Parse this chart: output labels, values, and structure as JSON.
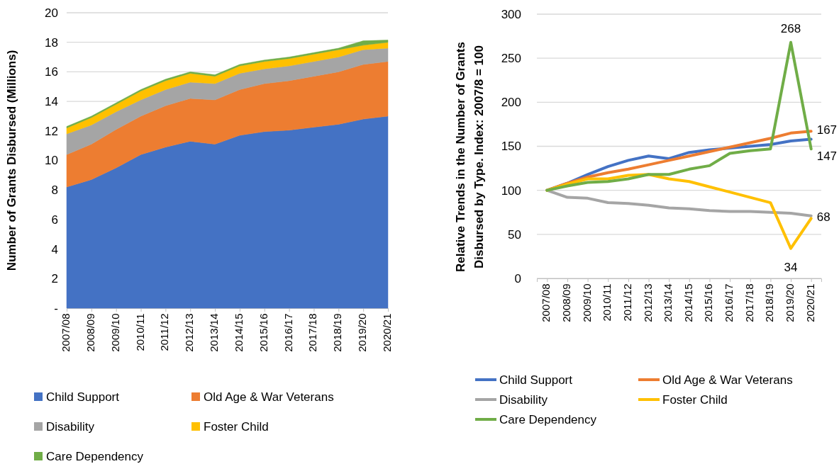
{
  "chart_data": [
    {
      "type": "area",
      "stacked": true,
      "ylabel": "Number of Grants Disbursed (Millions)",
      "categories": [
        "2007/08",
        "2008/09",
        "2009/10",
        "2010/11",
        "2011/12",
        "2012/13",
        "2013/14",
        "2014/15",
        "2015/16",
        "2016/17",
        "2017/18",
        "2018/19",
        "2019/20",
        "2020/21"
      ],
      "series": [
        {
          "name": "Child Support",
          "color": "#4472c4",
          "values": [
            8.2,
            8.7,
            9.5,
            10.4,
            10.9,
            11.3,
            11.1,
            11.7,
            11.95,
            12.05,
            12.25,
            12.45,
            12.8,
            13.0
          ]
        },
        {
          "name": "Old Age & War Veterans",
          "color": "#ed7d31",
          "values": [
            2.2,
            2.4,
            2.6,
            2.6,
            2.8,
            2.9,
            3.0,
            3.1,
            3.25,
            3.35,
            3.45,
            3.55,
            3.7,
            3.7
          ]
        },
        {
          "name": "Disability",
          "color": "#a5a5a5",
          "values": [
            1.4,
            1.3,
            1.2,
            1.1,
            1.1,
            1.1,
            1.1,
            1.1,
            1.0,
            1.0,
            1.0,
            1.0,
            1.0,
            0.9
          ]
        },
        {
          "name": "Foster Child",
          "color": "#ffc000",
          "values": [
            0.4,
            0.5,
            0.5,
            0.6,
            0.6,
            0.6,
            0.5,
            0.5,
            0.5,
            0.5,
            0.5,
            0.5,
            0.3,
            0.4
          ]
        },
        {
          "name": "Care Dependency",
          "color": "#70ad47",
          "values": [
            0.1,
            0.1,
            0.1,
            0.1,
            0.1,
            0.1,
            0.1,
            0.1,
            0.1,
            0.1,
            0.1,
            0.1,
            0.3,
            0.15
          ]
        }
      ],
      "ylim": [
        0,
        20
      ],
      "yticks": [
        {
          "value": 0,
          "label": "-"
        },
        2,
        4,
        6,
        8,
        10,
        12,
        14,
        16,
        18,
        20
      ],
      "grid": "y",
      "legend": "bottom"
    },
    {
      "type": "line",
      "ylabel": "Relative Trends in the Number of Grants Disbursed by Type. Index: 2007/8 = 100",
      "categories": [
        "2007/08",
        "2008/09",
        "2009/10",
        "2010/11",
        "2011/12",
        "2012/13",
        "2013/14",
        "2014/15",
        "2015/16",
        "2016/17",
        "2017/18",
        "2018/19",
        "2019/20",
        "2020/21"
      ],
      "series": [
        {
          "name": "Child Support",
          "color": "#4472c4",
          "values": [
            100,
            108,
            118,
            127,
            134,
            139,
            136,
            143,
            146,
            148,
            150,
            152,
            156,
            158
          ]
        },
        {
          "name": "Old Age & War Veterans",
          "color": "#ed7d31",
          "values": [
            100,
            108,
            115,
            120,
            124,
            129,
            134,
            139,
            144,
            149,
            154,
            159,
            165,
            167
          ],
          "value_labels": [
            null,
            null,
            null,
            null,
            null,
            null,
            null,
            null,
            null,
            null,
            null,
            null,
            null,
            "167"
          ]
        },
        {
          "name": "Disability",
          "color": "#a5a5a5",
          "values": [
            100,
            92,
            91,
            86,
            85,
            83,
            80,
            79,
            77,
            76,
            76,
            75,
            74,
            71
          ]
        },
        {
          "name": "Foster Child",
          "color": "#ffc000",
          "values": [
            100,
            107,
            113,
            113,
            117,
            118,
            113,
            110,
            104,
            98,
            92,
            86,
            34,
            68
          ],
          "value_labels": [
            null,
            null,
            null,
            null,
            null,
            null,
            null,
            null,
            null,
            null,
            null,
            null,
            "34",
            "68"
          ]
        },
        {
          "name": "Care Dependency",
          "color": "#70ad47",
          "values": [
            100,
            105,
            109,
            110,
            113,
            118,
            118,
            124,
            128,
            142,
            145,
            147,
            268,
            147
          ],
          "value_labels": [
            null,
            null,
            null,
            null,
            null,
            null,
            null,
            null,
            null,
            null,
            null,
            null,
            "268",
            "147"
          ]
        }
      ],
      "ylim": [
        0,
        300
      ],
      "yticks": [
        0,
        50,
        100,
        150,
        200,
        250,
        300
      ],
      "grid": "y",
      "legend": "bottom",
      "marker": "none",
      "line_style": "solid"
    }
  ]
}
